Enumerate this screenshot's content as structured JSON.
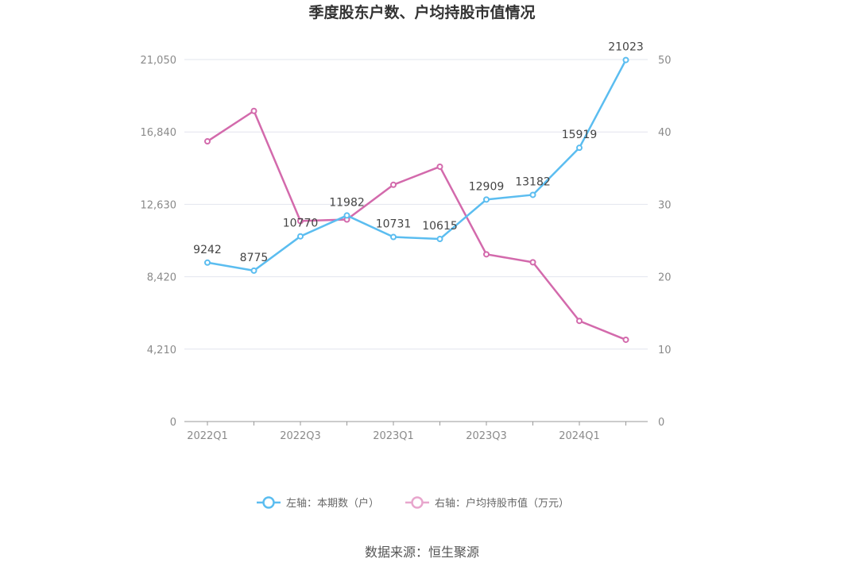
{
  "chart_data": {
    "type": "line",
    "title": "季度股东户数、户均持股市值情况",
    "categories": [
      "2022Q1",
      "2022Q2",
      "2022Q3",
      "2022Q4",
      "2023Q1",
      "2023Q2",
      "2023Q3",
      "2023Q4",
      "2024Q1",
      "2024Q2"
    ],
    "x_tick_labels": [
      "2022Q1",
      "2022Q3",
      "2023Q1",
      "2023Q3",
      "2024Q1"
    ],
    "left_axis": {
      "ticks": [
        "0",
        "4,210",
        "8,420",
        "12,630",
        "16,840",
        "21,050"
      ],
      "ylim": [
        0,
        21050
      ]
    },
    "right_axis": {
      "ticks": [
        "0",
        "10",
        "20",
        "30",
        "40",
        "50"
      ],
      "ylim": [
        0,
        50
      ]
    },
    "series": [
      {
        "name": "左轴：本期数（户）",
        "axis": "left",
        "color": "#5bbdf0",
        "values": [
          9242,
          8775,
          10770,
          11982,
          10731,
          10615,
          12909,
          13182,
          15919,
          21023
        ],
        "labels": [
          "9242",
          "8775",
          "10770",
          "11982",
          "10731",
          "10615",
          "12909",
          "13182",
          "15919",
          "21023"
        ]
      },
      {
        "name": "右轴：户均持股市值（万元）",
        "axis": "right",
        "color": "#d36aac",
        "values": [
          38.7,
          42.9,
          27.7,
          27.9,
          32.7,
          35.2,
          23.1,
          22.0,
          13.9,
          11.3
        ]
      }
    ],
    "legend_position": "bottom",
    "grid": true
  },
  "source": "数据来源：恒生聚源",
  "colors": {
    "grid": "#e2e4ee",
    "axis": "#999999",
    "legend_right_marker": "#e8a6cd"
  }
}
